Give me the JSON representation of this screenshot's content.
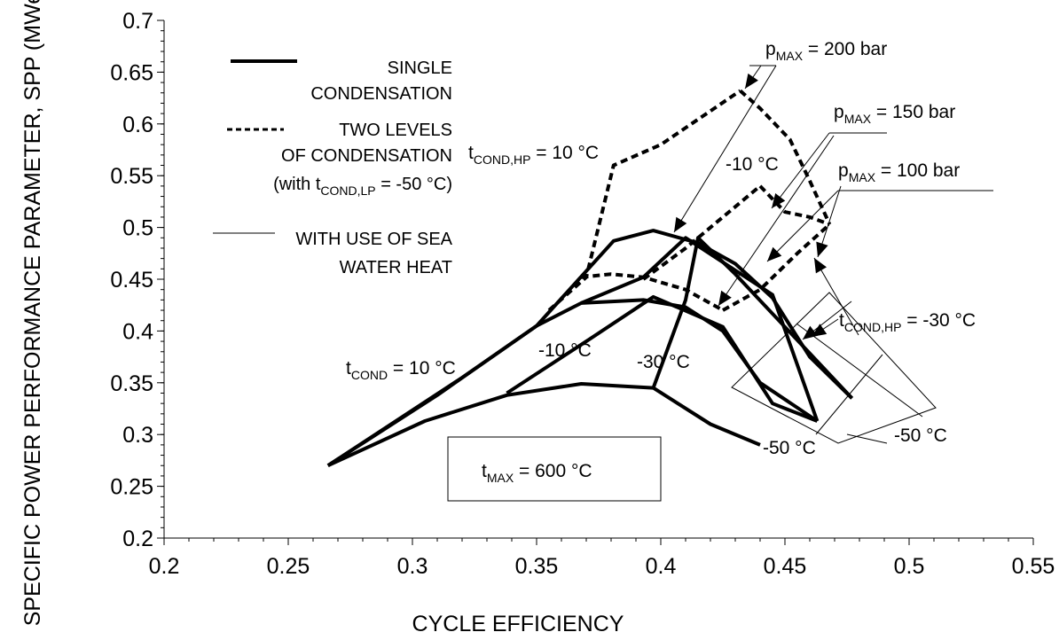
{
  "chart_data": {
    "type": "line",
    "xlabel": "CYCLE EFFICIENCY",
    "ylabel": "SPECIFIC POWER PERFORMANCE PARAMETER, SPP (MWe/kg/s)",
    "xlim": [
      0.2,
      0.55
    ],
    "ylim": [
      0.2,
      0.7
    ],
    "xticks": [
      "0.2",
      "0.25",
      "0.3",
      "0.35",
      "0.4",
      "0.45",
      "0.5",
      "0.55"
    ],
    "yticks": [
      "0.2",
      "0.25",
      "0.3",
      "0.35",
      "0.4",
      "0.45",
      "0.5",
      "0.55",
      "0.6",
      "0.65",
      "0.7"
    ],
    "grid": false,
    "legend": {
      "single": "SINGLE CONDENSATION",
      "two_levels": "TWO LEVELS OF CONDENSATION",
      "two_levels_note": "(with t",
      "two_levels_note_sub": "COND,LP",
      "two_levels_note_tail": " = -50 °C)",
      "sea_water": "WITH USE OF SEA WATER HEAT"
    },
    "series": [
      {
        "style": "single",
        "x": [
          0.266,
          0.305,
          0.338,
          0.368,
          0.397,
          0.42,
          0.44
        ],
        "y": [
          0.27,
          0.313,
          0.338,
          0.349,
          0.345,
          0.31,
          0.29
        ]
      },
      {
        "style": "single",
        "x": [
          0.266,
          0.32,
          0.35,
          0.368,
          0.393,
          0.41,
          0.425,
          0.44,
          0.463
        ],
        "y": [
          0.27,
          0.355,
          0.405,
          0.427,
          0.43,
          0.423,
          0.4,
          0.35,
          0.313
        ]
      },
      {
        "style": "single",
        "x": [
          0.266,
          0.31,
          0.35,
          0.381,
          0.397,
          0.415,
          0.43,
          0.445,
          0.46,
          0.477
        ],
        "y": [
          0.27,
          0.338,
          0.405,
          0.487,
          0.497,
          0.485,
          0.465,
          0.432,
          0.375,
          0.335
        ]
      },
      {
        "style": "single",
        "x": [
          0.338,
          0.37,
          0.397,
          0.425,
          0.445,
          0.463
        ],
        "y": [
          0.34,
          0.39,
          0.433,
          0.404,
          0.33,
          0.313
        ]
      },
      {
        "style": "single",
        "x": [
          0.368,
          0.393,
          0.41,
          0.445,
          0.463
        ],
        "y": [
          0.427,
          0.452,
          0.49,
          0.435,
          0.313
        ]
      },
      {
        "style": "single",
        "x": [
          0.397,
          0.41,
          0.415,
          0.43,
          0.477
        ],
        "y": [
          0.345,
          0.43,
          0.49,
          0.455,
          0.335
        ]
      },
      {
        "style": "dashed",
        "x": [
          0.355,
          0.37,
          0.381,
          0.4,
          0.432
        ],
        "y": [
          0.42,
          0.452,
          0.56,
          0.58,
          0.632
        ]
      },
      {
        "style": "dashed",
        "x": [
          0.393,
          0.41,
          0.425,
          0.44
        ],
        "y": [
          0.45,
          0.48,
          0.51,
          0.54
        ]
      },
      {
        "style": "dashed",
        "x": [
          0.425,
          0.44,
          0.455,
          0.468
        ],
        "y": [
          0.42,
          0.44,
          0.475,
          0.503
        ]
      },
      {
        "style": "dashed",
        "x": [
          0.368,
          0.38,
          0.393,
          0.41,
          0.425
        ],
        "y": [
          0.452,
          0.455,
          0.452,
          0.44,
          0.42
        ]
      },
      {
        "style": "dashed",
        "x": [
          0.432,
          0.44,
          0.452,
          0.46,
          0.468
        ],
        "y": [
          0.632,
          0.615,
          0.585,
          0.545,
          0.503
        ]
      },
      {
        "style": "dashed",
        "x": [
          0.44,
          0.45,
          0.46,
          0.468
        ],
        "y": [
          0.54,
          0.515,
          0.51,
          0.503
        ]
      }
    ],
    "annotations": {
      "pmax200": {
        "pre": "p",
        "sub": "MAX",
        "post": " = 200 bar"
      },
      "pmax150": {
        "pre": "p",
        "sub": "MAX",
        "post": " = 150 bar"
      },
      "pmax100": {
        "pre": "p",
        "sub": "MAX",
        "post": " = 100 bar"
      },
      "tcondhp10": {
        "pre": "t",
        "sub": "COND,HP",
        "post": " = 10 °C"
      },
      "minus10_hp": "-10 °C",
      "tcondhp_minus30": {
        "pre": "t",
        "sub": "COND,HP",
        "post": " = -30 °C"
      },
      "tcond10": {
        "pre": "t",
        "sub": "COND",
        "post": " = 10 °C"
      },
      "minus10": "-10 °C",
      "minus30": "-30 °C",
      "minus50_a": "-50 °C",
      "minus50_b": "-50 °C",
      "tmax": {
        "pre": "t",
        "sub": "MAX",
        "post": " = 600 °C"
      }
    }
  },
  "colors": {
    "line": "#000000",
    "background": "#ffffff"
  }
}
